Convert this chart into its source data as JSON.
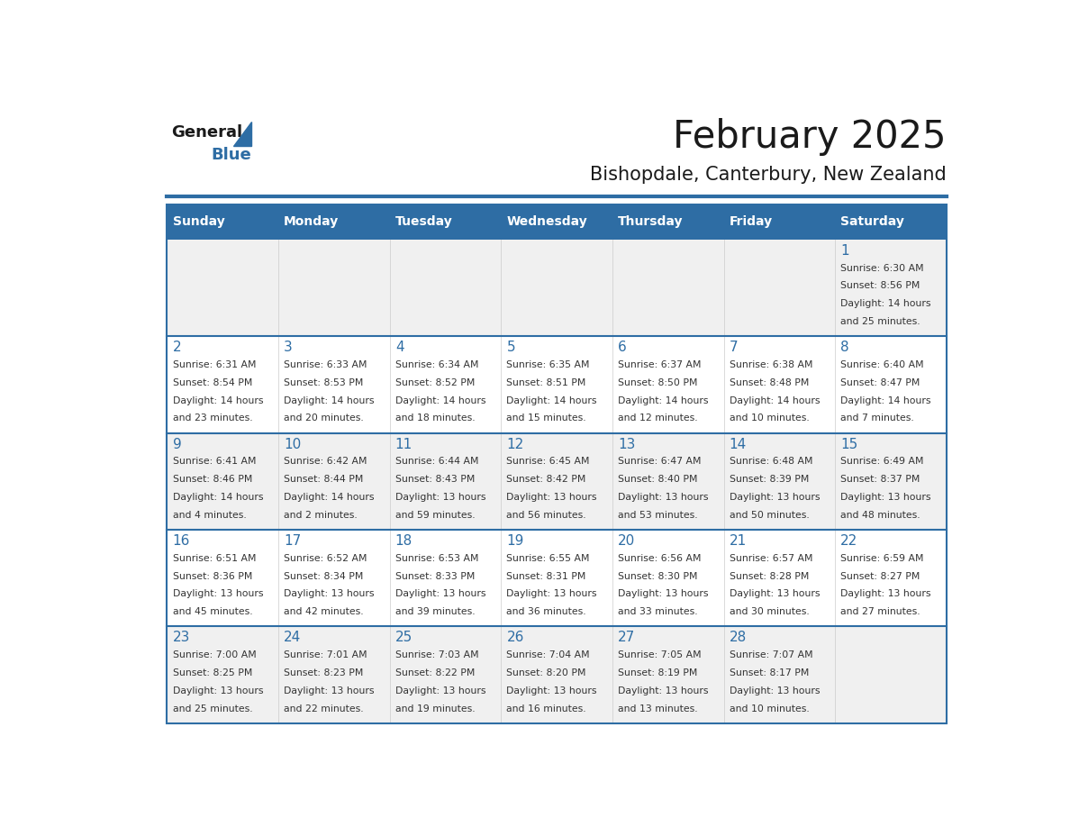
{
  "title": "February 2025",
  "subtitle": "Bishopdale, Canterbury, New Zealand",
  "header_bg": "#2e6da4",
  "header_text_color": "#ffffff",
  "cell_bg_light": "#f0f0f0",
  "cell_bg_white": "#ffffff",
  "separator_color": "#2e6da4",
  "text_color": "#333333",
  "days_of_week": [
    "Sunday",
    "Monday",
    "Tuesday",
    "Wednesday",
    "Thursday",
    "Friday",
    "Saturday"
  ],
  "weeks": [
    [
      {
        "day": null,
        "data": null
      },
      {
        "day": null,
        "data": null
      },
      {
        "day": null,
        "data": null
      },
      {
        "day": null,
        "data": null
      },
      {
        "day": null,
        "data": null
      },
      {
        "day": null,
        "data": null
      },
      {
        "day": 1,
        "data": {
          "sunrise": "6:30 AM",
          "sunset": "8:56 PM",
          "daylight_hours": 14,
          "daylight_minutes": 25
        }
      }
    ],
    [
      {
        "day": 2,
        "data": {
          "sunrise": "6:31 AM",
          "sunset": "8:54 PM",
          "daylight_hours": 14,
          "daylight_minutes": 23
        }
      },
      {
        "day": 3,
        "data": {
          "sunrise": "6:33 AM",
          "sunset": "8:53 PM",
          "daylight_hours": 14,
          "daylight_minutes": 20
        }
      },
      {
        "day": 4,
        "data": {
          "sunrise": "6:34 AM",
          "sunset": "8:52 PM",
          "daylight_hours": 14,
          "daylight_minutes": 18
        }
      },
      {
        "day": 5,
        "data": {
          "sunrise": "6:35 AM",
          "sunset": "8:51 PM",
          "daylight_hours": 14,
          "daylight_minutes": 15
        }
      },
      {
        "day": 6,
        "data": {
          "sunrise": "6:37 AM",
          "sunset": "8:50 PM",
          "daylight_hours": 14,
          "daylight_minutes": 12
        }
      },
      {
        "day": 7,
        "data": {
          "sunrise": "6:38 AM",
          "sunset": "8:48 PM",
          "daylight_hours": 14,
          "daylight_minutes": 10
        }
      },
      {
        "day": 8,
        "data": {
          "sunrise": "6:40 AM",
          "sunset": "8:47 PM",
          "daylight_hours": 14,
          "daylight_minutes": 7
        }
      }
    ],
    [
      {
        "day": 9,
        "data": {
          "sunrise": "6:41 AM",
          "sunset": "8:46 PM",
          "daylight_hours": 14,
          "daylight_minutes": 4
        }
      },
      {
        "day": 10,
        "data": {
          "sunrise": "6:42 AM",
          "sunset": "8:44 PM",
          "daylight_hours": 14,
          "daylight_minutes": 2
        }
      },
      {
        "day": 11,
        "data": {
          "sunrise": "6:44 AM",
          "sunset": "8:43 PM",
          "daylight_hours": 13,
          "daylight_minutes": 59
        }
      },
      {
        "day": 12,
        "data": {
          "sunrise": "6:45 AM",
          "sunset": "8:42 PM",
          "daylight_hours": 13,
          "daylight_minutes": 56
        }
      },
      {
        "day": 13,
        "data": {
          "sunrise": "6:47 AM",
          "sunset": "8:40 PM",
          "daylight_hours": 13,
          "daylight_minutes": 53
        }
      },
      {
        "day": 14,
        "data": {
          "sunrise": "6:48 AM",
          "sunset": "8:39 PM",
          "daylight_hours": 13,
          "daylight_minutes": 50
        }
      },
      {
        "day": 15,
        "data": {
          "sunrise": "6:49 AM",
          "sunset": "8:37 PM",
          "daylight_hours": 13,
          "daylight_minutes": 48
        }
      }
    ],
    [
      {
        "day": 16,
        "data": {
          "sunrise": "6:51 AM",
          "sunset": "8:36 PM",
          "daylight_hours": 13,
          "daylight_minutes": 45
        }
      },
      {
        "day": 17,
        "data": {
          "sunrise": "6:52 AM",
          "sunset": "8:34 PM",
          "daylight_hours": 13,
          "daylight_minutes": 42
        }
      },
      {
        "day": 18,
        "data": {
          "sunrise": "6:53 AM",
          "sunset": "8:33 PM",
          "daylight_hours": 13,
          "daylight_minutes": 39
        }
      },
      {
        "day": 19,
        "data": {
          "sunrise": "6:55 AM",
          "sunset": "8:31 PM",
          "daylight_hours": 13,
          "daylight_minutes": 36
        }
      },
      {
        "day": 20,
        "data": {
          "sunrise": "6:56 AM",
          "sunset": "8:30 PM",
          "daylight_hours": 13,
          "daylight_minutes": 33
        }
      },
      {
        "day": 21,
        "data": {
          "sunrise": "6:57 AM",
          "sunset": "8:28 PM",
          "daylight_hours": 13,
          "daylight_minutes": 30
        }
      },
      {
        "day": 22,
        "data": {
          "sunrise": "6:59 AM",
          "sunset": "8:27 PM",
          "daylight_hours": 13,
          "daylight_minutes": 27
        }
      }
    ],
    [
      {
        "day": 23,
        "data": {
          "sunrise": "7:00 AM",
          "sunset": "8:25 PM",
          "daylight_hours": 13,
          "daylight_minutes": 25
        }
      },
      {
        "day": 24,
        "data": {
          "sunrise": "7:01 AM",
          "sunset": "8:23 PM",
          "daylight_hours": 13,
          "daylight_minutes": 22
        }
      },
      {
        "day": 25,
        "data": {
          "sunrise": "7:03 AM",
          "sunset": "8:22 PM",
          "daylight_hours": 13,
          "daylight_minutes": 19
        }
      },
      {
        "day": 26,
        "data": {
          "sunrise": "7:04 AM",
          "sunset": "8:20 PM",
          "daylight_hours": 13,
          "daylight_minutes": 16
        }
      },
      {
        "day": 27,
        "data": {
          "sunrise": "7:05 AM",
          "sunset": "8:19 PM",
          "daylight_hours": 13,
          "daylight_minutes": 13
        }
      },
      {
        "day": 28,
        "data": {
          "sunrise": "7:07 AM",
          "sunset": "8:17 PM",
          "daylight_hours": 13,
          "daylight_minutes": 10
        }
      },
      {
        "day": null,
        "data": null
      }
    ]
  ],
  "logo_text_general": "General",
  "logo_text_blue": "Blue",
  "logo_color_general": "#1a1a1a",
  "logo_color_blue": "#2e6da4"
}
